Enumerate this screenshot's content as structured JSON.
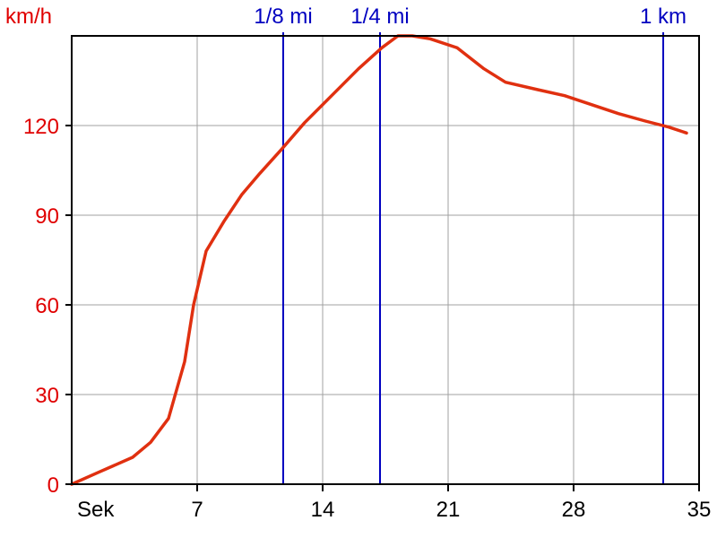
{
  "chart_data": {
    "type": "line",
    "xlabel": "Sek",
    "ylabel": "km/h",
    "xlim": [
      0,
      35
    ],
    "ylim": [
      0,
      150
    ],
    "x_ticks": [
      7,
      14,
      21,
      28,
      35
    ],
    "y_ticks": [
      0,
      30,
      60,
      90,
      120
    ],
    "grid": true,
    "series": [
      {
        "color": "#e03010",
        "points": [
          [
            0,
            0
          ],
          [
            1.5,
            4
          ],
          [
            3.4,
            9
          ],
          [
            4.4,
            14
          ],
          [
            5.4,
            22
          ],
          [
            6.3,
            41
          ],
          [
            6.8,
            60
          ],
          [
            7.5,
            78
          ],
          [
            8.5,
            88
          ],
          [
            9.5,
            97
          ],
          [
            10.5,
            104
          ],
          [
            11.7,
            112
          ],
          [
            13,
            121
          ],
          [
            14.5,
            130
          ],
          [
            16,
            139
          ],
          [
            17.3,
            146
          ],
          [
            18.2,
            150
          ],
          [
            19,
            150
          ],
          [
            20,
            149
          ],
          [
            21.5,
            146
          ],
          [
            23,
            139
          ],
          [
            24.2,
            134.5
          ],
          [
            26,
            132
          ],
          [
            27.5,
            130
          ],
          [
            29,
            127
          ],
          [
            30.5,
            124
          ],
          [
            32,
            121.5
          ],
          [
            33.3,
            119.5
          ],
          [
            34.3,
            117.5
          ]
        ]
      }
    ],
    "markers": [
      {
        "x": 11.8,
        "label": "1/8 mi"
      },
      {
        "x": 17.2,
        "label": "1/4 mi"
      },
      {
        "x": 33,
        "label": "1 km"
      }
    ],
    "colors": {
      "y_axis_text": "#e00000",
      "x_axis_text": "#000000",
      "marker": "#0000c0",
      "grid": "#a0a0a0",
      "line": "#e03010"
    }
  }
}
